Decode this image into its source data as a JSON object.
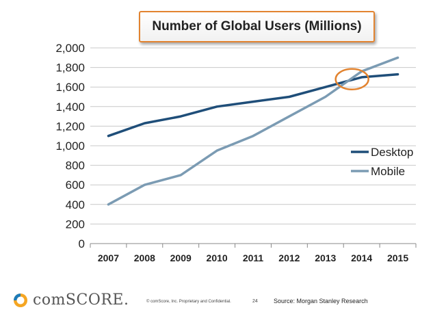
{
  "chart_data": {
    "type": "line",
    "title": "Number of Global Users (Millions)",
    "x": [
      "2007",
      "2008",
      "2009",
      "2010",
      "2011",
      "2012",
      "2013",
      "2014",
      "2015"
    ],
    "ylim": [
      0,
      2000
    ],
    "yticks": [
      "0",
      "200",
      "400",
      "600",
      "800",
      "1,000",
      "1,200",
      "1,400",
      "1,600",
      "1,800",
      "2,000"
    ],
    "grid": true,
    "legend_position": "right",
    "series": [
      {
        "name": "Desktop",
        "color": "#1f4e79",
        "values": [
          1100,
          1230,
          1300,
          1400,
          1450,
          1500,
          1600,
          1700,
          1730
        ]
      },
      {
        "name": "Mobile",
        "color": "#7b9bb3",
        "values": [
          400,
          600,
          700,
          950,
          1100,
          1300,
          1500,
          1760,
          1900
        ]
      }
    ],
    "annotation": {
      "type": "circle",
      "color": "#e2832f",
      "x": "2014",
      "y": 1680
    }
  },
  "footer": {
    "logo_text": "comSCORE.",
    "copyright": "© comScore, Inc.  Proprietary and Confidential.",
    "page_number": "24",
    "source": "Source: Morgan Stanley Research"
  }
}
